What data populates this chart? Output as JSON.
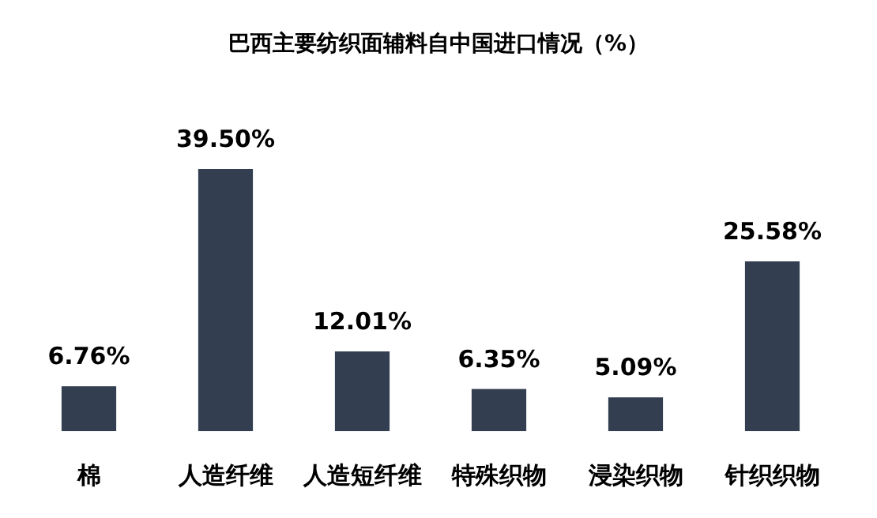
{
  "chart_data": {
    "type": "bar",
    "title": "巴西主要纺织面辅料自中国进口情况（%）",
    "categories": [
      "棉",
      "人造纤维",
      "人造短纤维",
      "特殊织物",
      "浸染织物",
      "针织织物"
    ],
    "values": [
      6.76,
      39.5,
      12.01,
      6.35,
      5.09,
      25.58
    ],
    "value_labels": [
      "6.76%",
      "39.50%",
      "12.01%",
      "6.35%",
      "5.09%",
      "25.58%"
    ],
    "color": "#333f50"
  }
}
